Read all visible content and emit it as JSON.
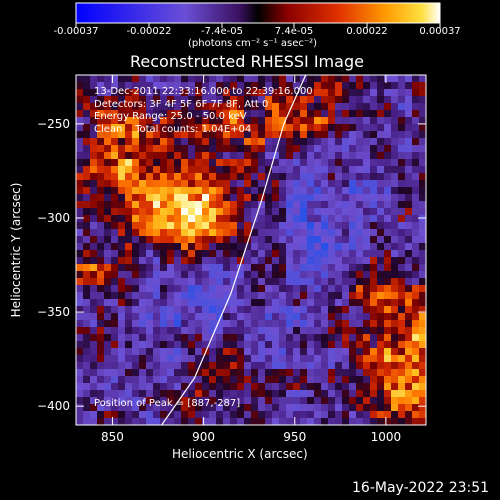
{
  "colorbar": {
    "ticks": [
      "-0.00037",
      "-0.00022",
      "-7.4e-05",
      "7.4e-05",
      "0.00022",
      "0.00037"
    ],
    "unit": "(photons cm⁻² s⁻¹ asec⁻²)"
  },
  "chart_data": {
    "type": "heatmap",
    "title": "Reconstructed RHESSI Image",
    "xlabel": "Heliocentric X (arcsec)",
    "ylabel": "Heliocentric Y (arcsec)",
    "xlim": [
      830,
      1022
    ],
    "ylim": [
      -410,
      -224
    ],
    "xticks": [
      850,
      900,
      950,
      1000
    ],
    "yticks": [
      -250,
      -300,
      -350,
      -400
    ],
    "xtick_labels": [
      "850",
      "900",
      "950",
      "1000"
    ],
    "ytick_labels": [
      "−250",
      "−300",
      "−350",
      "−400"
    ],
    "colorscale": "RHESSI red-temperature (blue → purple → red → orange → yellow → white)",
    "peak_position": [
      887,
      -287
    ],
    "limb_curve": [
      [
        877,
        -410
      ],
      [
        895,
        -385
      ],
      [
        915,
        -340
      ],
      [
        932,
        -290
      ],
      [
        944,
        -250
      ],
      [
        956,
        -224
      ]
    ],
    "info_lines": [
      "13-Dec-2011 22:33:16.000 to 22:39:16.000",
      "Detectors: 3F 4F 5F 6F 7F 8F, Att 0",
      "Energy Range: 25.0 - 50.0 keV",
      "Clean    Total counts: 1.04E+04"
    ],
    "peak_label": "Position of Peak = [887,-287]"
  },
  "timestamp": "16-May-2022 23:51"
}
